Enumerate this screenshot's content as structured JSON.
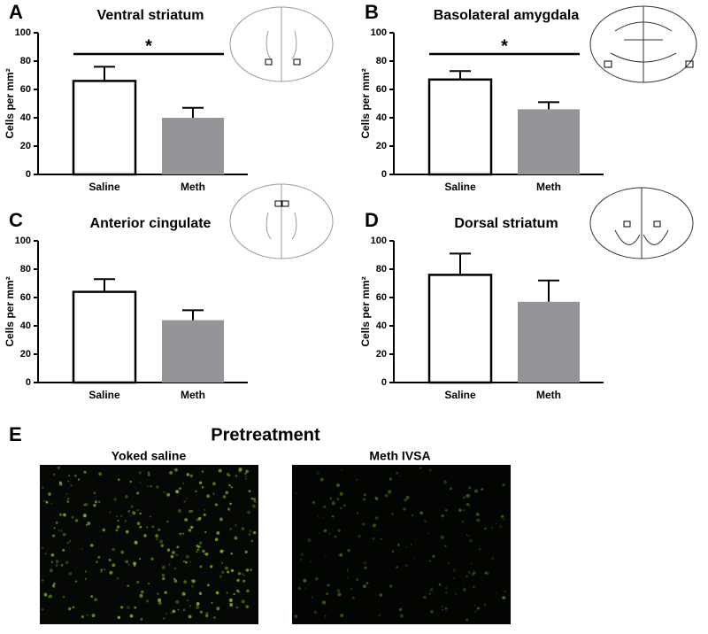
{
  "chart_data": [
    {
      "type": "bar",
      "panel": "A",
      "title": "Ventral striatum",
      "ylabel": "Cells per mm²",
      "categories": [
        "Saline",
        "Meth"
      ],
      "values": [
        66,
        40
      ],
      "errors": [
        10,
        7
      ],
      "colors": [
        "#ffffff",
        "#939598"
      ],
      "ylim": [
        0,
        100
      ],
      "yticks": [
        0,
        20,
        40,
        60,
        80,
        100
      ],
      "significance": "*"
    },
    {
      "type": "bar",
      "panel": "B",
      "title": "Basolateral amygdala",
      "ylabel": "Cells per mm²",
      "categories": [
        "Saline",
        "Meth"
      ],
      "values": [
        67,
        46
      ],
      "errors": [
        6,
        5
      ],
      "colors": [
        "#ffffff",
        "#939598"
      ],
      "ylim": [
        0,
        100
      ],
      "yticks": [
        0,
        20,
        40,
        60,
        80,
        100
      ],
      "significance": "*"
    },
    {
      "type": "bar",
      "panel": "C",
      "title": "Anterior cingulate",
      "ylabel": "Cells per mm²",
      "categories": [
        "Saline",
        "Meth"
      ],
      "values": [
        64,
        44
      ],
      "errors": [
        9,
        7
      ],
      "colors": [
        "#ffffff",
        "#939598"
      ],
      "ylim": [
        0,
        100
      ],
      "yticks": [
        0,
        20,
        40,
        60,
        80,
        100
      ]
    },
    {
      "type": "bar",
      "panel": "D",
      "title": "Dorsal striatum",
      "ylabel": "Cells per mm²",
      "categories": [
        "Saline",
        "Meth"
      ],
      "values": [
        76,
        57
      ],
      "errors": [
        15,
        15
      ],
      "colors": [
        "#ffffff",
        "#939598"
      ],
      "ylim": [
        0,
        100
      ],
      "yticks": [
        0,
        20,
        40,
        60,
        80,
        100
      ]
    }
  ],
  "panel_e": {
    "panel": "E",
    "title": "Pretreatment",
    "images": [
      "Yoked saline",
      "Meth IVSA"
    ]
  }
}
